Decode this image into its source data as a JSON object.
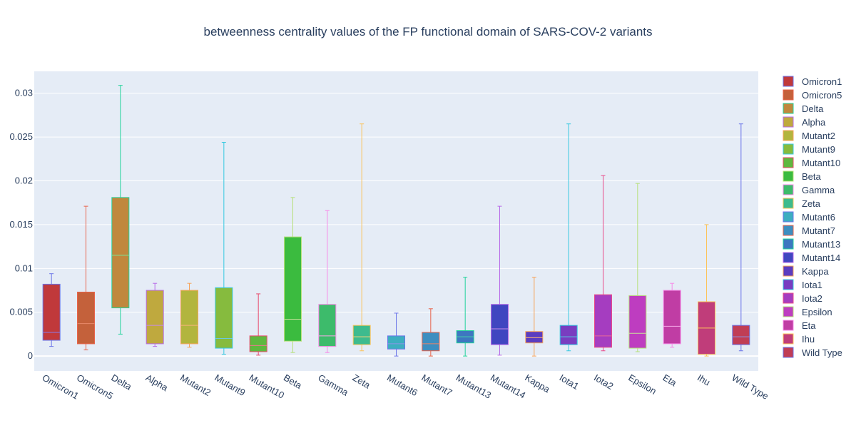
{
  "chart_data": {
    "type": "box",
    "title": "betweenness centrality values of the FP functional domain of SARS-COV-2 variants",
    "xlabel": "",
    "ylabel": "",
    "ylim": [
      -0.0017,
      0.0325
    ],
    "y_ticks": [
      0,
      0.005,
      0.01,
      0.015,
      0.02,
      0.025,
      0.03
    ],
    "y_tick_labels": [
      "0",
      "0.005",
      "0.01",
      "0.015",
      "0.02",
      "0.025",
      "0.03"
    ],
    "grid": true,
    "legend_position": "right",
    "series": [
      {
        "name": "Omicron1",
        "color": "#c0393b",
        "min": 0.0011,
        "q1": 0.0018,
        "median": 0.0027,
        "q3": 0.0082,
        "max": 0.0094
      },
      {
        "name": "Omicron5",
        "color": "#c4613b",
        "min": 0.0007,
        "q1": 0.0014,
        "median": 0.0037,
        "q3": 0.0073,
        "max": 0.0171
      },
      {
        "name": "Delta",
        "color": "#c0883d",
        "min": 0.0025,
        "q1": 0.0055,
        "median": 0.0115,
        "q3": 0.0181,
        "max": 0.0309
      },
      {
        "name": "Alpha",
        "color": "#bfa93e",
        "min": 0.0011,
        "q1": 0.0014,
        "median": 0.0035,
        "q3": 0.0075,
        "max": 0.0083
      },
      {
        "name": "Mutant2",
        "color": "#b2b53e",
        "min": 0.001,
        "q1": 0.0014,
        "median": 0.0035,
        "q3": 0.0075,
        "max": 0.0083
      },
      {
        "name": "Mutant9",
        "color": "#86bb3e",
        "min": 0.0002,
        "q1": 0.0009,
        "median": 0.002,
        "q3": 0.0078,
        "max": 0.0244
      },
      {
        "name": "Mutant10",
        "color": "#5eb83f",
        "min": 0.0001,
        "q1": 0.0005,
        "median": 0.0012,
        "q3": 0.0023,
        "max": 0.0071
      },
      {
        "name": "Beta",
        "color": "#3bbb3f",
        "min": 0.0004,
        "q1": 0.0017,
        "median": 0.0042,
        "q3": 0.0136,
        "max": 0.0181
      },
      {
        "name": "Gamma",
        "color": "#3dbb6b",
        "min": 0.0004,
        "q1": 0.0011,
        "median": 0.0023,
        "q3": 0.0059,
        "max": 0.0166
      },
      {
        "name": "Zeta",
        "color": "#3dbb8e",
        "min": 0.0006,
        "q1": 0.0013,
        "median": 0.0022,
        "q3": 0.0035,
        "max": 0.0265
      },
      {
        "name": "Mutant6",
        "color": "#3daec0",
        "min": 0.0,
        "q1": 0.0008,
        "median": 0.0014,
        "q3": 0.0023,
        "max": 0.0049
      },
      {
        "name": "Mutant7",
        "color": "#3d8ec0",
        "min": 0.0,
        "q1": 0.0006,
        "median": 0.0014,
        "q3": 0.0027,
        "max": 0.0054
      },
      {
        "name": "Mutant13",
        "color": "#3d77c0",
        "min": 0.0,
        "q1": 0.0015,
        "median": 0.0022,
        "q3": 0.0029,
        "max": 0.009
      },
      {
        "name": "Mutant14",
        "color": "#4046c0",
        "min": 0.0001,
        "q1": 0.0013,
        "median": 0.0031,
        "q3": 0.0059,
        "max": 0.0171
      },
      {
        "name": "Kappa",
        "color": "#5b3dc0",
        "min": 0.0,
        "q1": 0.0015,
        "median": 0.0021,
        "q3": 0.0028,
        "max": 0.009
      },
      {
        "name": "Iota1",
        "color": "#793dc0",
        "min": 0.0006,
        "q1": 0.0013,
        "median": 0.0022,
        "q3": 0.0035,
        "max": 0.0265
      },
      {
        "name": "Iota2",
        "color": "#a53dc0",
        "min": 0.0006,
        "q1": 0.001,
        "median": 0.0023,
        "q3": 0.007,
        "max": 0.0206
      },
      {
        "name": "Epsilon",
        "color": "#be3dc0",
        "min": 0.0005,
        "q1": 0.0009,
        "median": 0.0026,
        "q3": 0.0069,
        "max": 0.0197
      },
      {
        "name": "Eta",
        "color": "#c03da4",
        "min": 0.001,
        "q1": 0.0014,
        "median": 0.0034,
        "q3": 0.0075,
        "max": 0.0083
      },
      {
        "name": "Ihu",
        "color": "#c03d7a",
        "min": 0.0,
        "q1": 0.0002,
        "median": 0.0032,
        "q3": 0.0062,
        "max": 0.015
      },
      {
        "name": "Wild Type",
        "color": "#c03d55",
        "min": 0.0006,
        "q1": 0.0013,
        "median": 0.0022,
        "q3": 0.0035,
        "max": 0.0265
      }
    ],
    "whisker_colors": [
      "#6a74e8",
      "#e8634a",
      "#23d39b",
      "#b76ae8",
      "#f7a35a",
      "#35c8e0",
      "#e84a6b",
      "#b7e07a",
      "#f78ae8",
      "#fcc35a",
      "#6a74e8",
      "#e8634a",
      "#23d39b",
      "#b76ae8",
      "#f7a35a",
      "#35c8e0",
      "#e84a8a",
      "#b7e07a",
      "#f78ae8",
      "#fcc35a",
      "#6a74e8"
    ],
    "median_colors": [
      "#8a7ae8",
      "#e88a6a",
      "#7ae89b",
      "#c78ae8",
      "#f7b37a",
      "#6ac8e0",
      "#e87a8b",
      "#c7e09a",
      "#f7aae8",
      "#fcd37a",
      "#8a94e8",
      "#e8836a",
      "#43d3ab",
      "#c78ae8",
      "#f7b37a",
      "#55c8e0",
      "#e86a9a",
      "#c7e09a",
      "#f7aae8",
      "#fcc35a",
      "#8a94e8"
    ]
  }
}
